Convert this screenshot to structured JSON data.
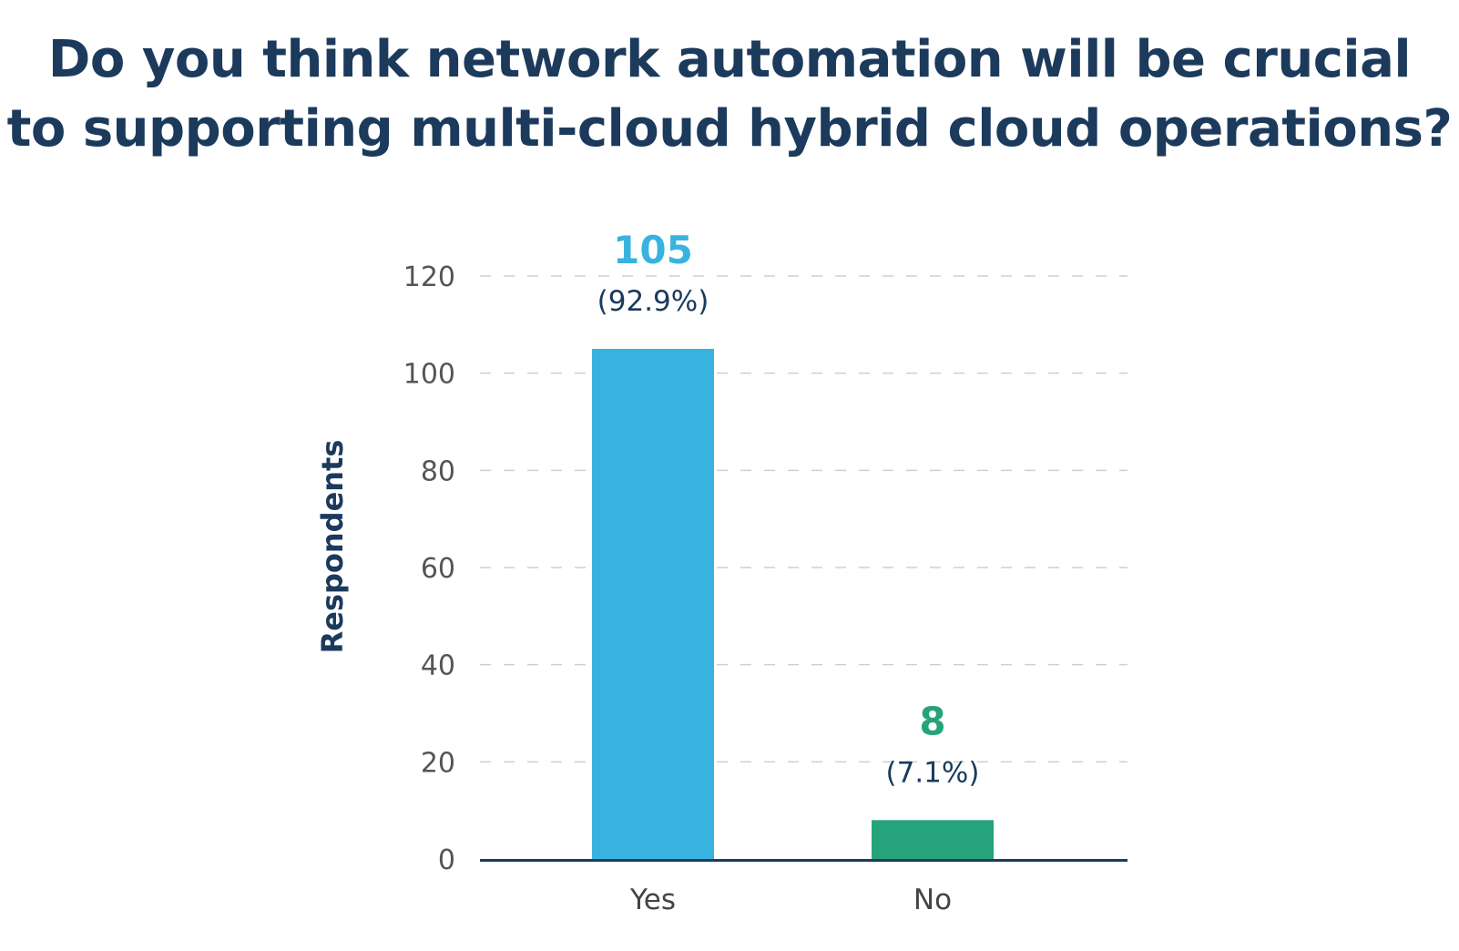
{
  "chart_data": {
    "type": "bar",
    "title_lines": [
      "Do you think network automation will be crucial",
      "to supporting multi-cloud hybrid cloud operations?"
    ],
    "xlabel": "",
    "ylabel": "Respondents",
    "ylim": [
      0,
      120
    ],
    "yticks": [
      0,
      20,
      40,
      60,
      80,
      100,
      120
    ],
    "grid": "horizontal-dashed",
    "categories": [
      "Yes",
      "No"
    ],
    "values": [
      105,
      8
    ],
    "percent_labels": [
      "(92.9%)",
      "(7.1%)"
    ],
    "value_labels": [
      "105",
      "8"
    ],
    "colors": [
      "#38b3df",
      "#25a47c"
    ],
    "axis_color": "#1b3a5c",
    "grid_color": "#cfcfcf"
  }
}
